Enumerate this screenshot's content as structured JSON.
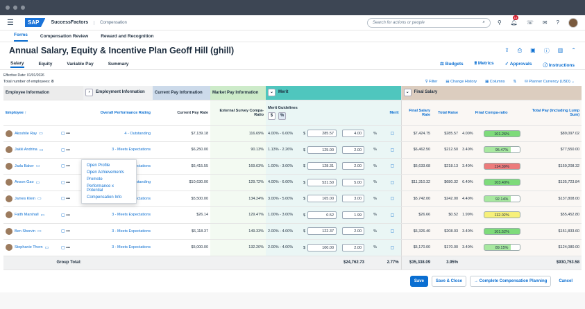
{
  "shell": {
    "brand": "SAP",
    "product": "SuccessFactors",
    "module": "Compensation",
    "search_placeholder": "Search for actions or people",
    "notif_count": "18"
  },
  "app_tabs": [
    "Forms",
    "Compensation Review",
    "Reward and Recognition"
  ],
  "page": {
    "title": "Annual Salary, Equity & Incentive Plan Geoff Hill (ghill)"
  },
  "sub_tabs": [
    "Salary",
    "Equity",
    "Variable Pay",
    "Summary"
  ],
  "actions": [
    "Budgets",
    "Metrics",
    "Approvals",
    "Instructions"
  ],
  "effective": "Effective Date: 01/01/2026",
  "total_label": "Total number of employees:",
  "total_count": "8",
  "table_actions": [
    "Filter",
    "Change History",
    "Columns",
    "Planner Currency (USD)"
  ],
  "groups": {
    "employee": "Employee Information",
    "employment": "Employment Information",
    "current": "Current Pay Information",
    "market": "Market Pay Information",
    "merit": "Merit",
    "final": "Final Salary"
  },
  "headers": {
    "employee": "Employee",
    "rating": "Overall Performance Rating",
    "current_pay": "Current Pay Rate",
    "compa": "External Survey Compa-Ratio",
    "merit_guidelines": "Merit Guidelines",
    "merit": "Merit",
    "final_rate": "Final Salary Rate",
    "total_raise": "Total Raise",
    "final_compa": "Final Compa-ratio",
    "total_pay": "Total Pay (Including Lump Sum)",
    "dollar": "$",
    "pct": "%"
  },
  "rows": [
    {
      "name": "Akoshile Ray",
      "rating": "4 - Outstanding",
      "pay": "$7,139.18",
      "compa": "116.69%",
      "guide": "4.00% - 6.00%",
      "cur": "$",
      "amt": "285.57",
      "pct": "4.00",
      "unit": "%",
      "final": "$7,424.75",
      "raise": "$285.57",
      "raise_pct": "4.00%",
      "fcompa": "101.26%",
      "fcolor": "green",
      "total": "$89,097.02"
    },
    {
      "name": "Jakki Andrina",
      "rating": "3 - Meets Expectations",
      "pay": "$6,250.00",
      "compa": "90.13%",
      "guide": "1.13% - 2.26%",
      "cur": "$",
      "amt": "125.00",
      "pct": "2.00",
      "unit": "%",
      "final": "$6,462.50",
      "raise": "$212.50",
      "raise_pct": "3.40%",
      "fcompa": "95.47%",
      "fcolor": "lg",
      "total": "$77,550.00"
    },
    {
      "name": "Jada Baker",
      "rating": "3 - Meets Expectations",
      "pay": "$6,415.55",
      "compa": "169.63%",
      "guide": "1.00% - 3.00%",
      "cur": "$",
      "amt": "128.31",
      "pct": "2.00",
      "unit": "%",
      "final": "$6,633.68",
      "raise": "$218.13",
      "raise_pct": "3.40%",
      "fcompa": "114.39%",
      "fcolor": "red",
      "total": "$159,208.32"
    },
    {
      "name": "Anson Gao",
      "rating": "4 - Outstanding",
      "pay": "$10,630.00",
      "compa": "129.72%",
      "guide": "4.00% - 6.00%",
      "cur": "$",
      "amt": "531.50",
      "pct": "5.00",
      "unit": "%",
      "final": "$11,310.32",
      "raise": "$680.32",
      "raise_pct": "6.40%",
      "fcompa": "103.40%",
      "fcolor": "green",
      "total": "$135,723.84"
    },
    {
      "name": "James Klein",
      "rating": "3 - Meets Expectations",
      "pay": "$5,500.00",
      "compa": "134.24%",
      "guide": "3.00% - 5.00%",
      "cur": "$",
      "amt": "165.00",
      "pct": "3.00",
      "unit": "%",
      "final": "$5,742.00",
      "raise": "$242.00",
      "raise_pct": "4.40%",
      "fcompa": "92.14%",
      "fcolor": "lg",
      "total": "$137,808.00"
    },
    {
      "name": "Faith Marshall",
      "rating": "3 - Meets Expectations",
      "pay": "$26.14",
      "compa": "129.47%",
      "guide": "1.00% - 3.00%",
      "cur": "$",
      "amt": "0.52",
      "pct": "1.99",
      "unit": "%",
      "final": "$26.66",
      "raise": "$0.52",
      "raise_pct": "1.99%",
      "fcompa": "112.02%",
      "fcolor": "yellow",
      "total": "$55,452.80"
    },
    {
      "name": "Ben Shervin",
      "rating": "3 - Meets Expectations",
      "pay": "$6,118.37",
      "compa": "149.33%",
      "guide": "2.00% - 4.00%",
      "cur": "$",
      "amt": "122.37",
      "pct": "2.00",
      "unit": "%",
      "final": "$6,326.40",
      "raise": "$208.03",
      "raise_pct": "3.40%",
      "fcompa": "101.52%",
      "fcolor": "green",
      "total": "$151,833.60"
    },
    {
      "name": "Stephanie Thorn",
      "rating": "3 - Meets Expectations",
      "pay": "$5,000.00",
      "compa": "132.20%",
      "guide": "2.00% - 4.00%",
      "cur": "$",
      "amt": "100.00",
      "pct": "2.00",
      "unit": "%",
      "final": "$5,170.00",
      "raise": "$170.00",
      "raise_pct": "3.40%",
      "fcompa": "89.15%",
      "fcolor": "lg",
      "total": "$124,080.00"
    }
  ],
  "totals": {
    "label": "Group Total:",
    "merit_amt": "$24,762.73",
    "merit_pct": "2.77%",
    "final": "$35,338.09",
    "raise_pct": "3.95%",
    "total": "$930,753.58"
  },
  "menu": [
    "Open Profile",
    "Open Achievements",
    "Promote",
    "Performance x Potential",
    "Compensation Info"
  ],
  "footer": {
    "save": "Save",
    "save_close": "Save & Close",
    "complete": "Complete Compensation Planning",
    "cancel": "Cancel"
  },
  "colors": {
    "accent": "#0a6ed1",
    "merit_group": "#4fc6be"
  }
}
